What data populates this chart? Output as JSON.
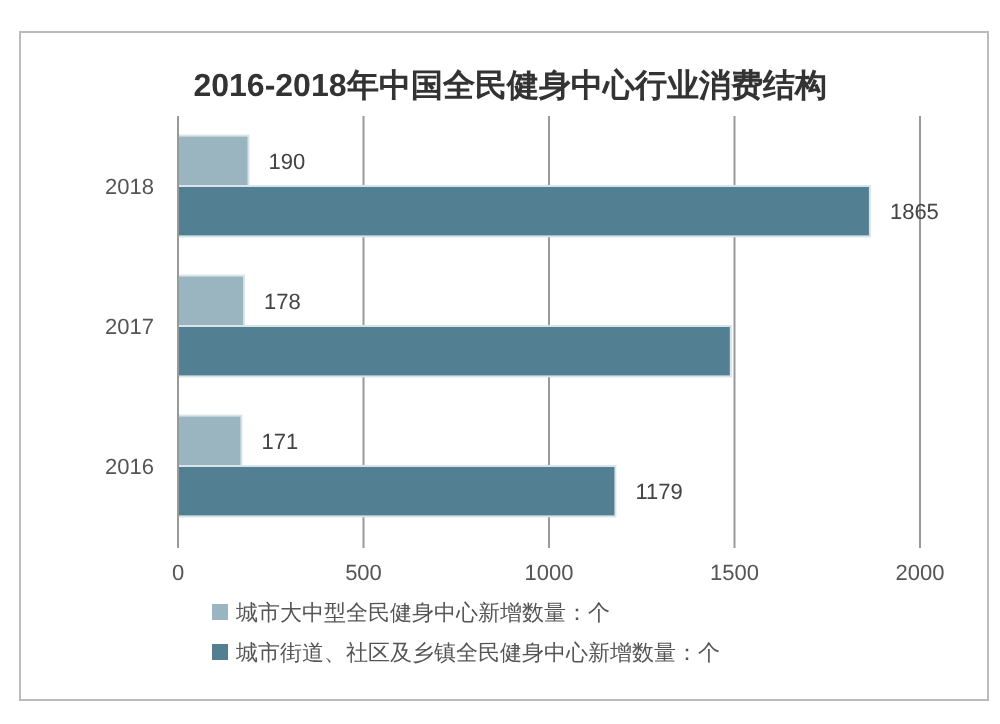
{
  "chart_data": {
    "type": "bar",
    "orientation": "horizontal",
    "title": "2016-2018年中国全民健身中心行业消费结构",
    "categories": [
      "2018",
      "2017",
      "2016"
    ],
    "series": [
      {
        "name": "城市大中型全民健身中心新增数量：个",
        "color": "#9ab5c0",
        "values": [
          190,
          178,
          171
        ],
        "value_labels": [
          "190",
          "178",
          "171"
        ]
      },
      {
        "name": "城市街道、社区及乡镇全民健身中心新增数量：个",
        "color": "#527f92",
        "values": [
          1865,
          1490,
          1179
        ],
        "value_labels": [
          "1865",
          null,
          "1179"
        ]
      }
    ],
    "xlim": [
      0,
      2000
    ],
    "xticks": [
      0,
      500,
      1000,
      1500,
      2000
    ],
    "grid": "x",
    "legend": "bottom"
  }
}
